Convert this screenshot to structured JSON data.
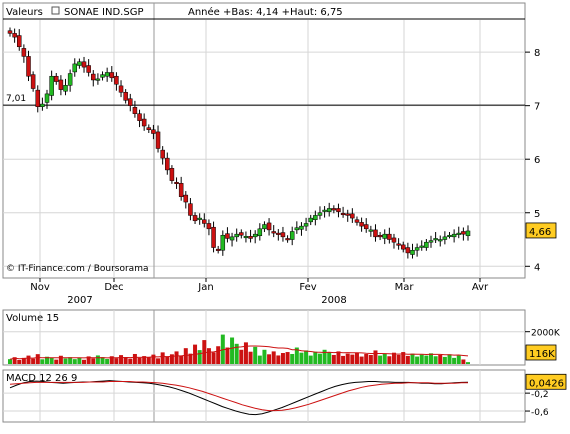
{
  "header": {
    "valeurs_label": "Valeurs",
    "instrument": "SONAE IND.SGP",
    "range_text": "Année +Bas: 4,14 +Haut: 6,75"
  },
  "credit": "© IT-Finance.com / Boursorama",
  "colors": {
    "up": "#22b922",
    "down": "#cc1111",
    "macd": "#000000",
    "signal": "#cc1111",
    "badge": "#ffcc22",
    "grid": "#d6d6d6"
  },
  "chart_data": [
    {
      "type": "candlestick",
      "name": "price",
      "ylim": [
        3.8,
        8.6
      ],
      "yticks": [
        4,
        5,
        6,
        7,
        8
      ],
      "reference_line": {
        "value": 7.01,
        "label": "7,01"
      },
      "last_value": {
        "value": 4.66,
        "label": "4,66"
      },
      "xlabels": [
        "Nov",
        "Dec",
        "Jan",
        "Fev",
        "Mar",
        "Avr"
      ],
      "year_labels": [
        "2007",
        "2008"
      ],
      "closes": [
        8.35,
        8.28,
        8.1,
        7.92,
        7.55,
        7.32,
        6.98,
        7.03,
        7.22,
        7.55,
        7.45,
        7.3,
        7.38,
        7.6,
        7.78,
        7.82,
        7.72,
        7.62,
        7.48,
        7.5,
        7.58,
        7.62,
        7.52,
        7.4,
        7.25,
        7.1,
        7.0,
        6.85,
        6.72,
        6.62,
        6.55,
        6.48,
        6.2,
        6.02,
        5.8,
        5.6,
        5.55,
        5.3,
        5.2,
        4.95,
        4.85,
        4.9,
        4.8,
        4.7,
        4.35,
        4.3,
        4.58,
        4.52,
        4.55,
        4.6,
        4.58,
        4.56,
        4.52,
        4.6,
        4.7,
        4.78,
        4.68,
        4.62,
        4.6,
        4.55,
        4.5,
        4.65,
        4.72,
        4.75,
        4.8,
        4.9,
        4.95,
        5.0,
        5.05,
        5.08,
        5.05,
        5.02,
        4.98,
        4.95,
        4.9,
        4.82,
        4.75,
        4.7,
        4.68,
        4.55,
        4.55,
        4.6,
        4.5,
        4.45,
        4.4,
        4.32,
        4.25,
        4.3,
        4.35,
        4.38,
        4.45,
        4.48,
        4.52,
        4.5,
        4.55,
        4.58,
        4.6,
        4.62,
        4.6,
        4.66
      ]
    },
    {
      "type": "bar",
      "name": "Volume 15",
      "ylim": [
        0,
        2600
      ],
      "yticks": [
        {
          "value": 2000,
          "label": "2000K"
        }
      ],
      "last_value": {
        "value": 116,
        "label": "116K"
      },
      "values": [
        300,
        420,
        250,
        380,
        520,
        330,
        610,
        290,
        450,
        380,
        270,
        510,
        340,
        420,
        300,
        380,
        260,
        470,
        350,
        530,
        420,
        310,
        480,
        360,
        550,
        400,
        330,
        620,
        380,
        490,
        410,
        580,
        350,
        720,
        460,
        600,
        780,
        520,
        980,
        640,
        1200,
        860,
        1480,
        980,
        720,
        1100,
        1820,
        1020,
        1640,
        1250,
        880,
        1340,
        760,
        1060,
        520,
        880,
        600,
        780,
        530,
        680,
        740,
        620,
        1020,
        700,
        840,
        520,
        760,
        640,
        880,
        720,
        560,
        780,
        500,
        640,
        580,
        700,
        460,
        620,
        560,
        840,
        520,
        660,
        480,
        700,
        560,
        740,
        500,
        640,
        460,
        580,
        520,
        660,
        480,
        560,
        440,
        600,
        380,
        520,
        280,
        116
      ]
    },
    {
      "type": "line",
      "name": "MACD 12 26 9",
      "ylim": [
        -0.8,
        0.25
      ],
      "yticks": [
        {
          "value": -0.2,
          "label": "-0,2"
        },
        {
          "value": -0.6,
          "label": "-0,6"
        }
      ],
      "last_value": {
        "value": 0.0426,
        "label": "0,0426"
      },
      "series": [
        {
          "color": "#000000",
          "values": [
            -0.08,
            -0.02,
            0.03,
            0.06,
            0.07,
            0.06,
            0.04,
            0.03,
            0.02,
            0.03,
            0.04,
            0.05,
            0.05,
            0.06,
            0.07,
            0.08,
            0.07,
            0.06,
            0.05,
            0.04,
            0.03,
            0.02,
            0.0,
            -0.03,
            -0.06,
            -0.1,
            -0.15,
            -0.2,
            -0.26,
            -0.32,
            -0.38,
            -0.44,
            -0.5,
            -0.55,
            -0.6,
            -0.64,
            -0.67,
            -0.68,
            -0.66,
            -0.62,
            -0.57,
            -0.52,
            -0.46,
            -0.4,
            -0.34,
            -0.28,
            -0.22,
            -0.16,
            -0.1,
            -0.05,
            -0.01,
            0.02,
            0.04,
            0.05,
            0.06,
            0.06,
            0.05,
            0.05,
            0.04,
            0.04,
            0.04,
            0.03,
            0.02,
            0.02,
            0.01,
            0.01,
            0.02,
            0.03,
            0.04,
            0.0426
          ]
        },
        {
          "color": "#cc1111",
          "values": [
            0.0,
            0.01,
            0.02,
            0.03,
            0.04,
            0.04,
            0.04,
            0.04,
            0.04,
            0.04,
            0.04,
            0.04,
            0.05,
            0.05,
            0.05,
            0.06,
            0.06,
            0.06,
            0.06,
            0.05,
            0.05,
            0.04,
            0.03,
            0.02,
            0.0,
            -0.02,
            -0.05,
            -0.08,
            -0.12,
            -0.16,
            -0.21,
            -0.26,
            -0.31,
            -0.36,
            -0.41,
            -0.46,
            -0.5,
            -0.54,
            -0.57,
            -0.59,
            -0.59,
            -0.58,
            -0.56,
            -0.53,
            -0.49,
            -0.45,
            -0.4,
            -0.35,
            -0.3,
            -0.25,
            -0.2,
            -0.15,
            -0.11,
            -0.07,
            -0.04,
            -0.02,
            0.0,
            0.01,
            0.02,
            0.02,
            0.03,
            0.03,
            0.03,
            0.03,
            0.02,
            0.02,
            0.02,
            0.02,
            0.03,
            0.03
          ]
        }
      ]
    }
  ]
}
